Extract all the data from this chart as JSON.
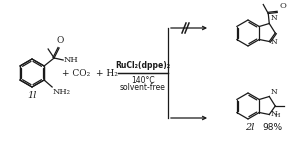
{
  "bg_color": "#ffffff",
  "fig_width": 3.07,
  "fig_height": 1.46,
  "dpi": 100,
  "reactant_label": "1l",
  "reagent_line1": "RuCl₂(dppe)₂",
  "reagent_line2": "140°C",
  "reagent_line3": "solvent-free",
  "product_bottom_label": "2l",
  "product_bottom_yield": "98%",
  "plus_text": "+ CO₂  + H₂",
  "line_color": "#1a1a1a",
  "text_color": "#1a1a1a",
  "lw": 0.9
}
